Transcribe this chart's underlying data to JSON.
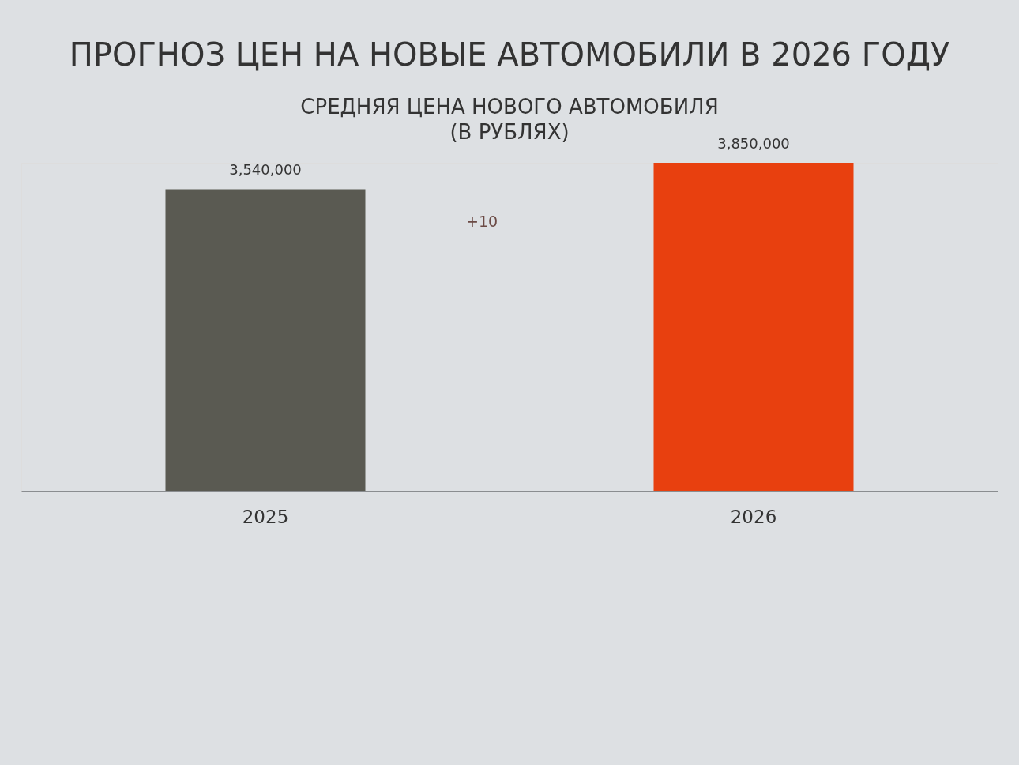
{
  "chart_data": {
    "type": "bar",
    "title": "ПРОГНОЗ ЦЕН НА НОВЫЕ АВТОМОБИЛИ В 2026 ГОДУ",
    "subtitle": "СРЕДНЯЯ ЦЕНА НОВОГО АВТОМОБИЛЯ\n(В РУБЛЯХ)",
    "categories": [
      "2025",
      "2026"
    ],
    "values": [
      3540000,
      3850000
    ],
    "value_labels": [
      "3,540,000",
      "3,850,000"
    ],
    "colors": [
      "#5a5a52",
      "#e8400f"
    ],
    "tick_labels": "x",
    "annotations": [
      "+10"
    ]
  }
}
